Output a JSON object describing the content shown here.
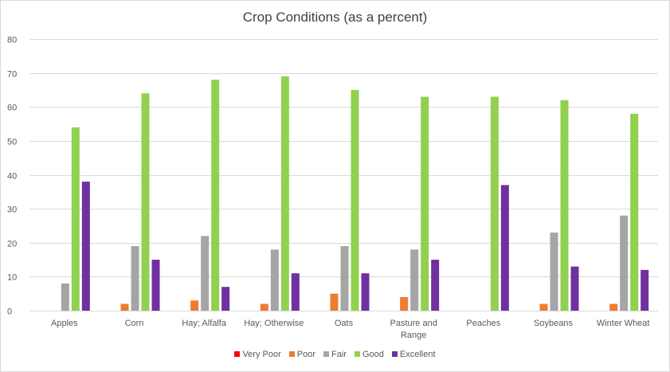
{
  "chart_data": {
    "type": "bar",
    "title": "Crop Conditions (as a percent)",
    "xlabel": "",
    "ylabel": "",
    "ylim": [
      0,
      80
    ],
    "yticks": [
      "0",
      "10",
      "20",
      "30",
      "40",
      "50",
      "60",
      "70",
      "80"
    ],
    "grid": true,
    "legend_position": "bottom",
    "categories": [
      "Apples",
      "Corn",
      "Hay; Alfalfa",
      "Hay; Otherwise",
      "Oats",
      "Pasture and Range",
      "Peaches",
      "Soybeans",
      "Winter Wheat"
    ],
    "series": [
      {
        "name": "Very Poor",
        "color": "#ff0000",
        "values": [
          0,
          0,
          0,
          0,
          0,
          0,
          0,
          0,
          0
        ]
      },
      {
        "name": "Poor",
        "color": "#ed7d31",
        "values": [
          0,
          2,
          3,
          2,
          5,
          4,
          0,
          2,
          2
        ]
      },
      {
        "name": "Fair",
        "color": "#a5a5a5",
        "values": [
          8,
          19,
          22,
          18,
          19,
          18,
          0,
          23,
          28
        ]
      },
      {
        "name": "Good",
        "color": "#92d050",
        "values": [
          54,
          64,
          68,
          69,
          65,
          63,
          63,
          62,
          58
        ]
      },
      {
        "name": "Excellent",
        "color": "#7030a0",
        "values": [
          38,
          15,
          7,
          11,
          11,
          15,
          37,
          13,
          12
        ]
      }
    ]
  }
}
